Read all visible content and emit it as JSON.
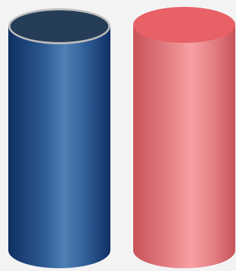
{
  "scene": {
    "background": "#f3f3f4",
    "cylinders": [
      {
        "name": "blue-cylinder",
        "body_edge_color": "#0f2f62",
        "body_mid_color": "#2d5a93",
        "body_highlight_color": "#4f7fb5",
        "top_color": "#263d57",
        "top_rim_color": "#bdbdbd"
      },
      {
        "name": "red-cylinder",
        "body_edge_color": "#c9535a",
        "body_mid_color": "#e27d82",
        "body_highlight_color": "#f7a0a3",
        "top_color": "#e76166",
        "top_rim_color": "#e76166"
      }
    ]
  }
}
